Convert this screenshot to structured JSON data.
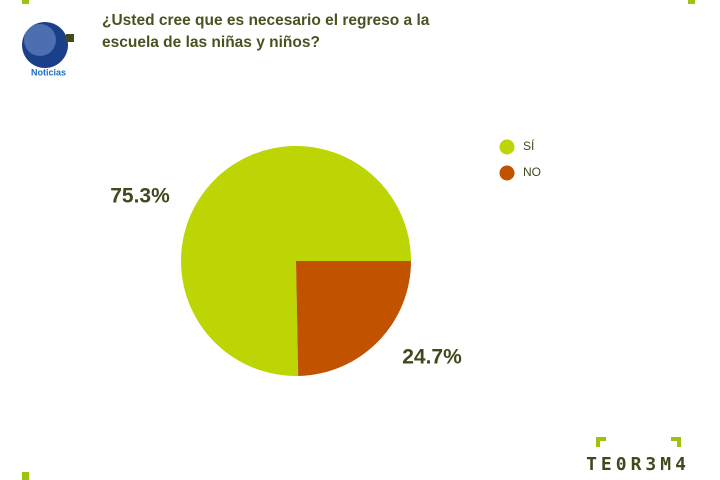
{
  "chart_data": {
    "type": "pie",
    "title": "¿Usted cree que es necesario el regreso a la escuela de las niñas y niños?",
    "categories": [
      "SÍ",
      "NO"
    ],
    "values": [
      75.3,
      24.7
    ],
    "value_labels": [
      "75.3%",
      "24.7%"
    ],
    "colors": [
      "#bdd505",
      "#c05200"
    ],
    "legend": "right"
  },
  "logo": {
    "text": "Noticias"
  },
  "brand": "TE0R3M4"
}
